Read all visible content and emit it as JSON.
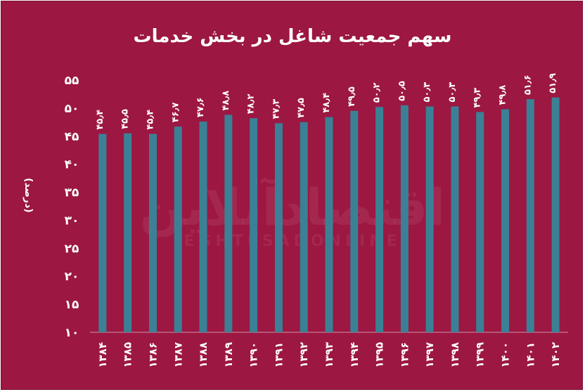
{
  "chart_data": {
    "type": "bar",
    "title": "سهم جمعیت شاغل در بخش خدمات",
    "ylabel": "(درصد)",
    "ylim": [
      10,
      55
    ],
    "yticks": [
      "۱۰",
      "۱۵",
      "۲۰",
      "۲۵",
      "۳۰",
      "۳۵",
      "۴۰",
      "۴۵",
      "۵۰",
      "۵۵"
    ],
    "ytick_values": [
      10,
      15,
      20,
      25,
      30,
      35,
      40,
      45,
      50,
      55
    ],
    "categories": [
      "۱۳۸۴",
      "۱۳۸۵",
      "۱۳۸۶",
      "۱۳۸۷",
      "۱۳۸۸",
      "۱۳۸۹",
      "۱۳۹۰",
      "۱۳۹۱",
      "۱۳۹۲",
      "۱۳۹۳",
      "۱۳۹۴",
      "۱۳۹۵",
      "۱۳۹۶",
      "۱۳۹۷",
      "۱۳۹۸",
      "۱۳۹۹",
      "۱۴۰۰",
      "۱۴۰۱",
      "۱۴۰۲"
    ],
    "values": [
      45.4,
      45.5,
      45.4,
      46.7,
      47.6,
      48.8,
      48.2,
      47.3,
      47.5,
      48.4,
      49.5,
      50.2,
      50.5,
      50.3,
      50.3,
      49.3,
      49.8,
      51.6,
      51.9
    ],
    "value_labels": [
      "۴۵٫۴",
      "۴۵٫۵",
      "۴۵٫۴",
      "۴۶٫۷",
      "۴۷٫۶",
      "۴۸٫۸",
      "۴۸٫۲",
      "۴۷٫۳",
      "۴۷٫۵",
      "۴۸٫۴",
      "۴۹٫۵",
      "۵۰٫۲",
      "۵۰٫۵",
      "۵۰٫۳",
      "۵۰٫۳",
      "۴۹٫۳",
      "۴۹٫۸",
      "۵۱٫۶",
      "۵۱٫۹"
    ],
    "grid": false,
    "legend": "none"
  },
  "colors": {
    "background": "#9c1742",
    "bar": "#3a8196",
    "text": "#ffffff"
  },
  "watermark": {
    "main": "اقتصادآنلاین",
    "sub": "EGHTESADONLINE"
  }
}
